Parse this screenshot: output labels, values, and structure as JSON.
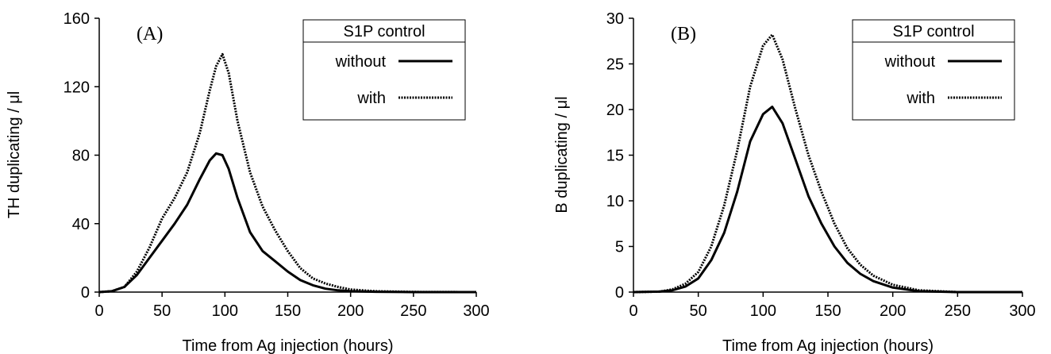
{
  "chart_data": [
    {
      "type": "line",
      "panel_label": "(A)",
      "xlabel": "Time from Ag injection (hours)",
      "ylabel": "TH duplicating / μl",
      "xlim": [
        0,
        300
      ],
      "ylim": [
        0,
        160
      ],
      "x_ticks": [
        "0",
        "50",
        "100",
        "150",
        "200",
        "250",
        "300"
      ],
      "y_ticks": [
        "0",
        "40",
        "80",
        "120",
        "160"
      ],
      "legend": {
        "title": "S1P control",
        "position": "top-right"
      },
      "series": [
        {
          "name": "without",
          "style": "solid",
          "x": [
            0,
            10,
            20,
            30,
            40,
            50,
            60,
            70,
            80,
            88,
            93,
            98,
            103,
            110,
            120,
            130,
            140,
            150,
            160,
            170,
            180,
            190,
            200,
            220,
            250,
            300
          ],
          "y": [
            0,
            0.5,
            3,
            10,
            20,
            30,
            40,
            51,
            66,
            77,
            81,
            80,
            72,
            55,
            35,
            24,
            18,
            12,
            7,
            4,
            2,
            1,
            0.5,
            0.2,
            0,
            0
          ]
        },
        {
          "name": "with",
          "style": "dotted",
          "x": [
            0,
            10,
            20,
            30,
            40,
            50,
            60,
            70,
            80,
            88,
            93,
            98,
            103,
            110,
            120,
            130,
            140,
            150,
            160,
            170,
            180,
            190,
            200,
            220,
            250,
            300
          ],
          "y": [
            0,
            0.5,
            3,
            12,
            26,
            43,
            55,
            70,
            93,
            118,
            132,
            139,
            128,
            100,
            70,
            50,
            36,
            24,
            14,
            8,
            5,
            3,
            1.5,
            0.5,
            0.1,
            0
          ]
        }
      ]
    },
    {
      "type": "line",
      "panel_label": "(B)",
      "xlabel": "Time from Ag injection (hours)",
      "ylabel": "B duplicating / μl",
      "xlim": [
        0,
        300
      ],
      "ylim": [
        0,
        30
      ],
      "x_ticks": [
        "0",
        "50",
        "100",
        "150",
        "200",
        "250",
        "300"
      ],
      "y_ticks": [
        "0",
        "5",
        "10",
        "15",
        "20",
        "25",
        "30"
      ],
      "legend": {
        "title": "S1P control",
        "position": "top-right"
      },
      "series": [
        {
          "name": "without",
          "style": "solid",
          "x": [
            0,
            20,
            30,
            40,
            50,
            60,
            70,
            80,
            90,
            100,
            107,
            115,
            125,
            135,
            145,
            155,
            165,
            175,
            185,
            200,
            220,
            250,
            300
          ],
          "y": [
            0,
            0.05,
            0.2,
            0.6,
            1.5,
            3.5,
            6.5,
            11,
            16.5,
            19.5,
            20.3,
            18.5,
            14.5,
            10.5,
            7.5,
            5,
            3.2,
            2,
            1.2,
            0.5,
            0.1,
            0,
            0
          ]
        },
        {
          "name": "with",
          "style": "dotted",
          "x": [
            0,
            20,
            30,
            40,
            50,
            60,
            70,
            80,
            90,
            100,
            107,
            115,
            125,
            135,
            145,
            155,
            165,
            175,
            185,
            200,
            220,
            250,
            300
          ],
          "y": [
            0,
            0.05,
            0.3,
            0.9,
            2.2,
            5,
            9.5,
            15.5,
            22.5,
            27,
            28.2,
            25.5,
            20,
            15,
            11,
            7.5,
            4.8,
            3,
            1.8,
            0.8,
            0.2,
            0,
            0
          ]
        }
      ]
    }
  ]
}
